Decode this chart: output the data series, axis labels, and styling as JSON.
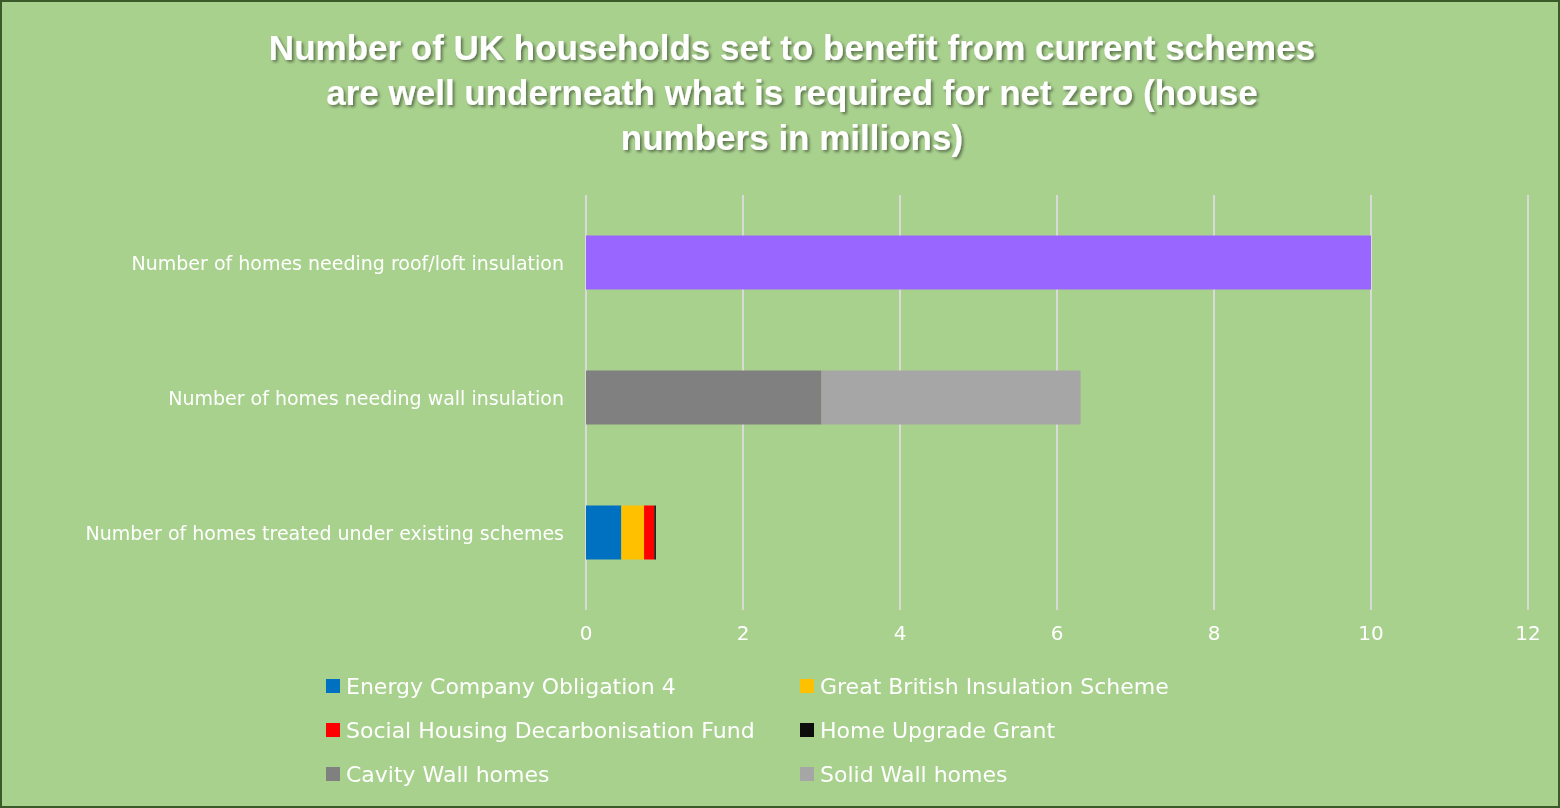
{
  "chart_data": {
    "type": "bar",
    "orientation": "horizontal",
    "stacked": true,
    "title": "Number of UK households set to benefit from current schemes are well underneath what is required for net zero (house numbers in millions)",
    "categories": [
      "Number of homes needing roof/loft insulation",
      "Number of homes needing wall insulation",
      "Number of homes treated under existing schemes"
    ],
    "series": [
      {
        "name": "Energy Company Obligation 4",
        "color": "#0070c0",
        "values": [
          null,
          null,
          0.45
        ]
      },
      {
        "name": "Great British Insulation Scheme",
        "color": "#ffc000",
        "values": [
          null,
          null,
          0.29
        ]
      },
      {
        "name": "Social Housing Decarbonisation Fund",
        "color": "#ff0000",
        "values": [
          null,
          null,
          0.13
        ]
      },
      {
        "name": "Home Upgrade Grant",
        "color": "#0d0d0d",
        "values": [
          null,
          null,
          0.02
        ]
      },
      {
        "name": "Cavity Wall homes",
        "color": "#808080",
        "values": [
          null,
          3.0,
          null
        ]
      },
      {
        "name": "Solid Wall homes",
        "color": "#a6a6a6",
        "values": [
          null,
          3.3,
          null
        ]
      },
      {
        "color": "#9966ff",
        "values": [
          10.0,
          null,
          null
        ]
      }
    ],
    "xlim": [
      0,
      12
    ],
    "xticks": [
      0,
      2,
      4,
      6,
      8,
      10,
      12
    ],
    "grid": "x",
    "legend": "bottom"
  }
}
